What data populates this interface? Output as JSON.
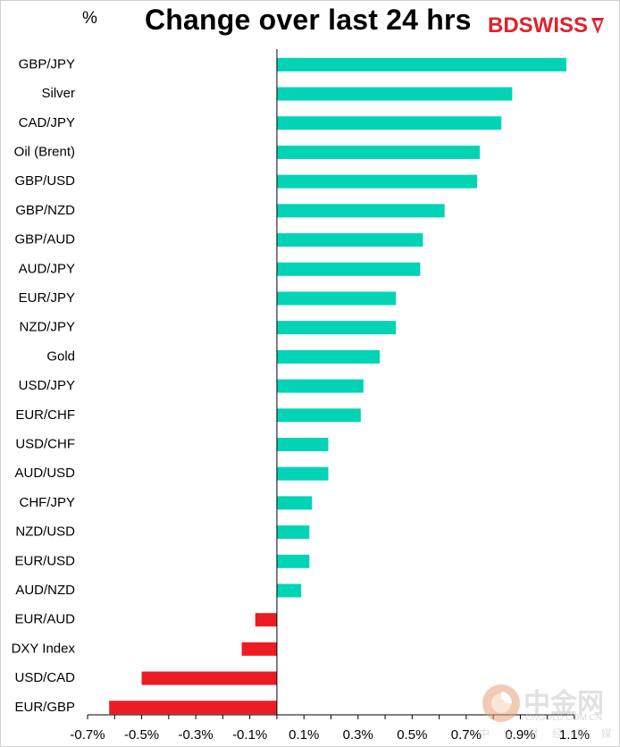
{
  "header": {
    "unit": "%",
    "title": "Change over last 24 hrs",
    "logo_bd": "BD",
    "logo_swiss": "SWISS",
    "logo_icon": "bdswiss-arrow-icon"
  },
  "watermark": {
    "text": "中金网",
    "sub": "CNGOLD.COM.CN",
    "sub2": "中 金 财 经 新 媒 体",
    "icon": "cngold-logo-icon"
  },
  "colors": {
    "positive": "#00d4b4",
    "negative": "#ed1c24",
    "axis": "#000000"
  },
  "chart_data": {
    "type": "bar",
    "orientation": "horizontal",
    "title": "Change over last 24 hrs",
    "ylabel": "%",
    "categories": [
      "GBP/JPY",
      "Silver",
      "CAD/JPY",
      "Oil (Brent)",
      "GBP/USD",
      "GBP/NZD",
      "GBP/AUD",
      "AUD/JPY",
      "EUR/JPY",
      "NZD/JPY",
      "Gold",
      "USD/JPY",
      "EUR/CHF",
      "USD/CHF",
      "AUD/USD",
      "CHF/JPY",
      "NZD/USD",
      "EUR/USD",
      "AUD/NZD",
      "EUR/AUD",
      "DXY Index",
      "USD/CAD",
      "EUR/GBP"
    ],
    "values": [
      1.07,
      0.87,
      0.83,
      0.75,
      0.74,
      0.62,
      0.54,
      0.53,
      0.44,
      0.44,
      0.38,
      0.32,
      0.31,
      0.19,
      0.19,
      0.13,
      0.12,
      0.12,
      0.09,
      -0.08,
      -0.13,
      -0.5,
      -0.62
    ],
    "xlim": [
      -0.7,
      1.1
    ],
    "xticks": [
      -0.7,
      -0.5,
      -0.3,
      -0.1,
      0.1,
      0.3,
      0.5,
      0.7,
      0.9,
      1.1
    ],
    "xtick_labels": [
      "-0.7%",
      "-0.5%",
      "-0.3%",
      "-0.1%",
      "0.1%",
      "0.3%",
      "0.5%",
      "0.7%",
      "0.9%",
      "1.1%"
    ],
    "grid": false,
    "legend": "none"
  }
}
